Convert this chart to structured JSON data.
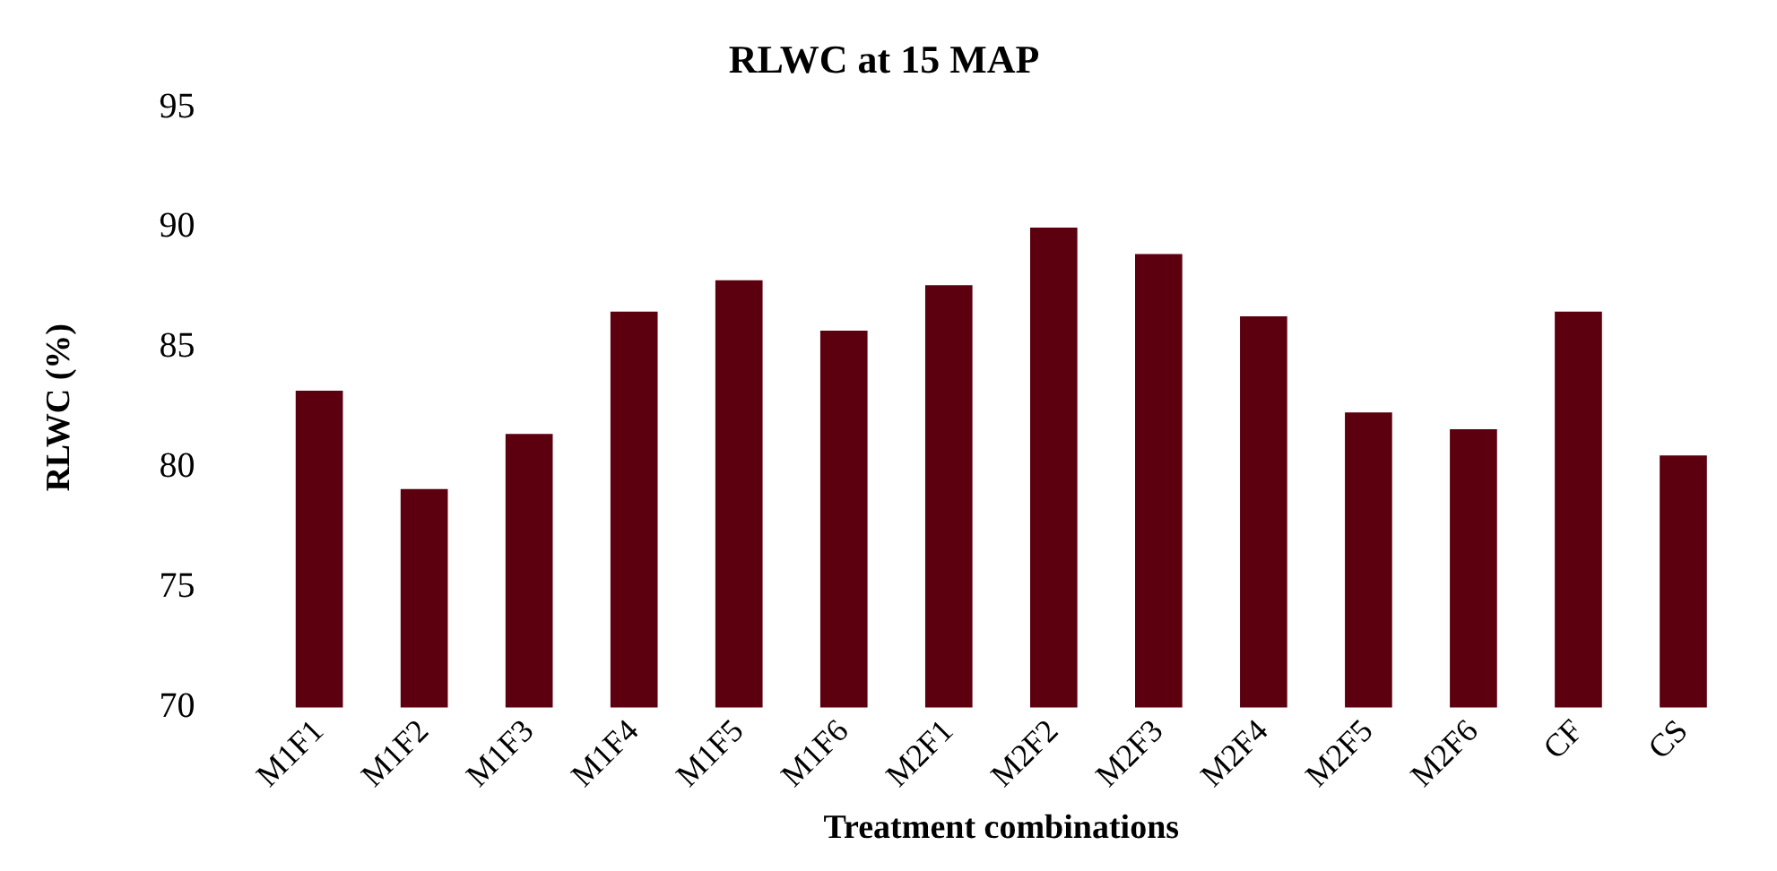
{
  "chart_data": {
    "type": "bar",
    "title": "RLWC at 15 MAP",
    "xlabel": "Treatment combinations",
    "ylabel": "RLWC (%)",
    "categories": [
      "M1F1",
      "M1F2",
      "M1F3",
      "M1F4",
      "M1F5",
      "M1F6",
      "M2F1",
      "M2F2",
      "M2F3",
      "M2F4",
      "M2F5",
      "M2F6",
      "CF",
      "CS"
    ],
    "values": [
      83.2,
      79.1,
      81.4,
      86.5,
      87.8,
      85.7,
      87.6,
      90.0,
      88.9,
      86.3,
      82.3,
      81.6,
      86.5,
      80.5
    ],
    "color": "#5c0010",
    "ylim": [
      70,
      95
    ],
    "yticks": [
      70,
      75,
      80,
      85,
      90,
      95
    ],
    "grid": false,
    "legend": false
  }
}
